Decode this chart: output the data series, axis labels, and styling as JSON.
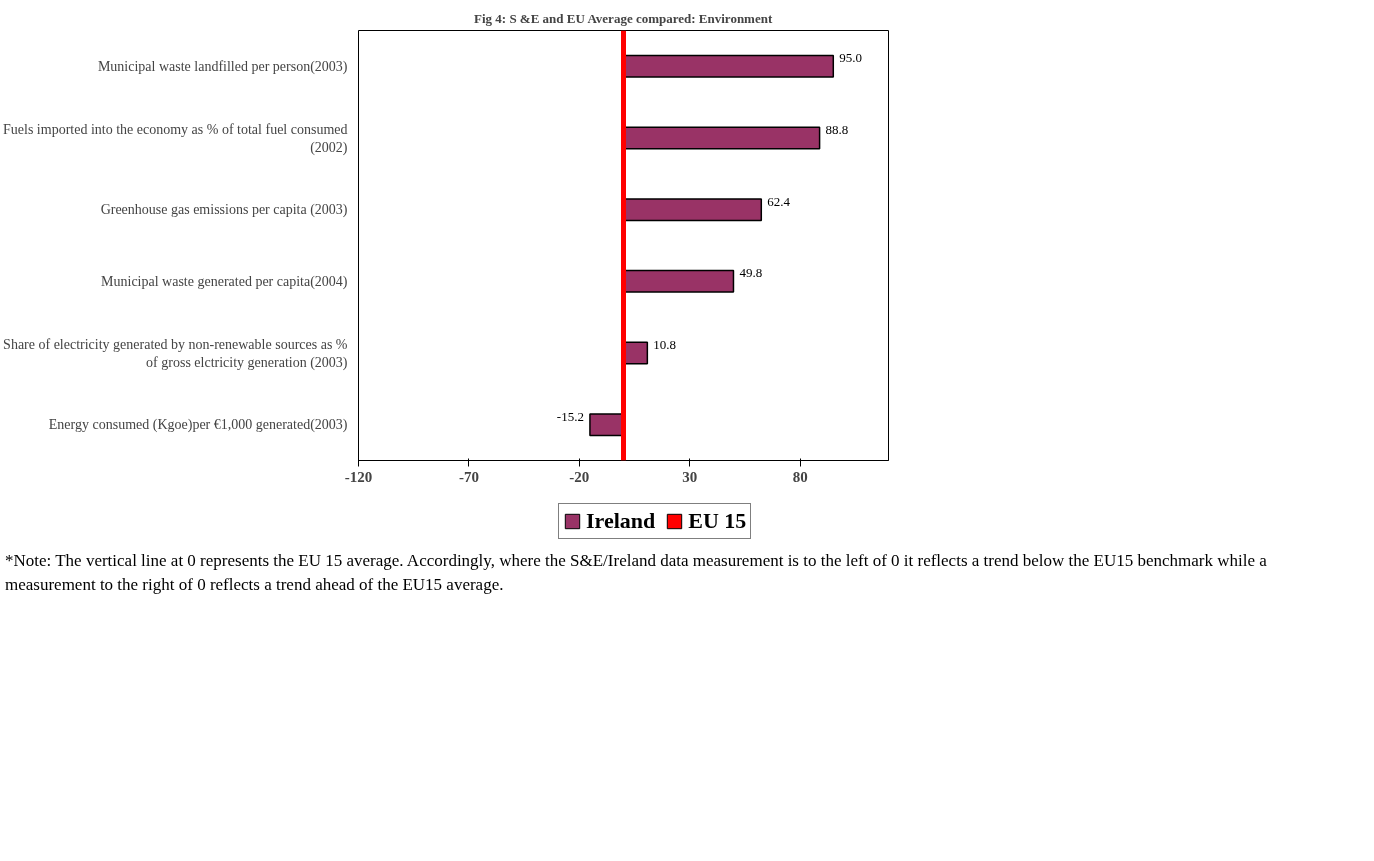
{
  "chart_data": {
    "type": "bar",
    "orientation": "horizontal",
    "title": "Fig 4: S &E and EU Average compared: Environment",
    "categories": [
      "Municipal waste landfilled per person(2003)",
      "Fuels imported into the economy as % of total fuel consumed (2002)",
      "Greenhouse gas emissions per capita (2003)",
      "Municipal waste generated per capita(2004)",
      "Share of electricity generated by non-renewable sources as % of gross elctricity generation (2003)",
      "Energy consumed (Kgoe)per €1,000 generated(2003)"
    ],
    "series": [
      {
        "name": "Ireland",
        "color": "#993366",
        "values": [
          95.0,
          88.8,
          62.4,
          49.8,
          10.8,
          -15.2
        ],
        "value_labels": [
          "95.0",
          "88.8",
          "62.4",
          "49.8",
          "10.8",
          "-15.2"
        ]
      }
    ],
    "xlim": [
      -120,
      120
    ],
    "xticks": [
      -120,
      -70,
      -20,
      30,
      80
    ],
    "ref_lines": [
      {
        "axis": "x",
        "value": 0,
        "label": "EU 15",
        "color": "#ff0000"
      }
    ],
    "grid": false,
    "legend": "bottom",
    "annotations": [
      "*Note: The vertical line at 0 represents the EU 15 average.  Accordingly, where the S&E/Ireland data measurement is to the left of 0 it reflects a trend below the EU15 benchmark while a measurement to the right of 0 reflects a trend ahead of the EU15 average."
    ]
  }
}
